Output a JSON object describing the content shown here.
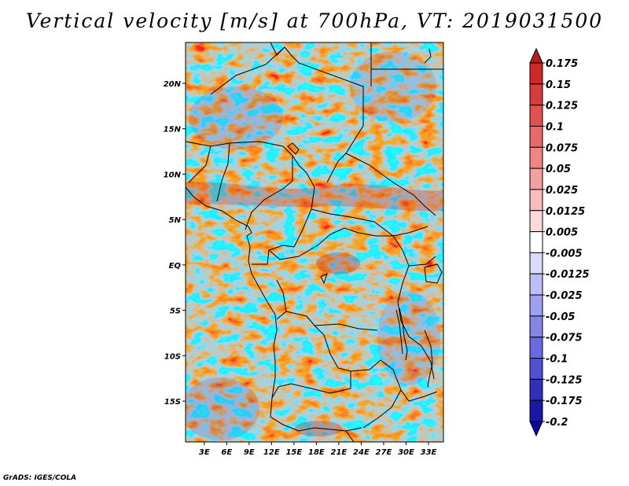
{
  "title": "Vertical velocity [m/s] at 700hPa, VT: 2019031500",
  "footer": "GrADS: IGES/COLA",
  "lat_labels": [
    "20N",
    "15N",
    "10N",
    "5N",
    "EQ",
    "5S",
    "10S",
    "15S"
  ],
  "lat_values": [
    20,
    15,
    10,
    5,
    0,
    -5,
    -10,
    -15
  ],
  "lon_labels": [
    "3E",
    "6E",
    "9E",
    "12E",
    "15E",
    "18E",
    "21E",
    "24E",
    "27E",
    "30E",
    "33E"
  ],
  "lon_values": [
    3,
    6,
    9,
    12,
    15,
    18,
    21,
    24,
    27,
    30,
    33
  ],
  "map_extent": {
    "lon_min": 0.5,
    "lon_max": 35,
    "lat_min": -19.5,
    "lat_max": 24.5
  },
  "colorbar": {
    "labels": [
      "0.175",
      "0.15",
      "0.125",
      "0.1",
      "0.075",
      "0.05",
      "0.025",
      "0.0125",
      "0.005",
      "-0.005",
      "-0.0125",
      "-0.025",
      "-0.05",
      "-0.075",
      "-0.1",
      "-0.125",
      "-0.175",
      "-0.2"
    ],
    "colors": [
      "#c01818",
      "#cc2a2a",
      "#d63c3c",
      "#e05252",
      "#e86a6a",
      "#ef8585",
      "#f4a0a0",
      "#f8bdbd",
      "#fbdada",
      "#ffffff",
      "#dadafb",
      "#bdbdf8",
      "#a0a0f0",
      "#8585e8",
      "#6a6ae0",
      "#5050d0",
      "#3030b8",
      "#1818a8",
      "#0808a0"
    ]
  }
}
